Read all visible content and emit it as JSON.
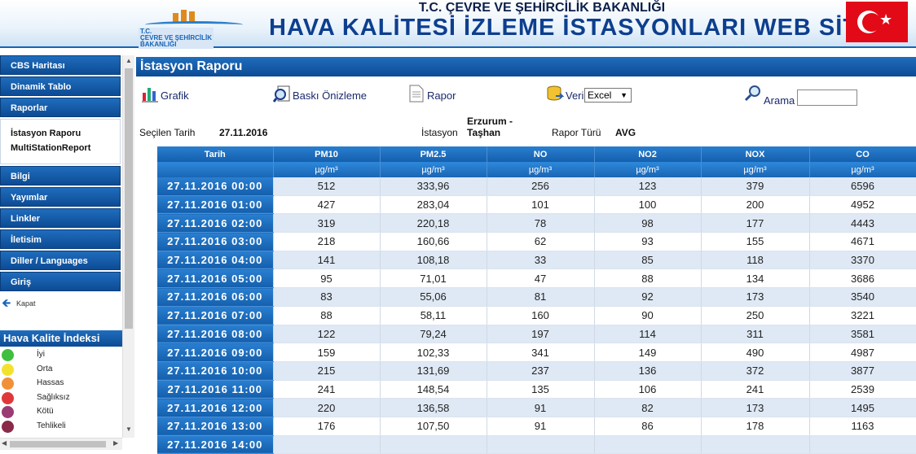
{
  "header": {
    "logo_text": [
      "T.C.",
      "ÇEVRE VE ŞEHİRCİLİK",
      "BAKANLIĞI"
    ],
    "ministry": "T.C. ÇEVRE VE ŞEHİRCİLİK BAKANLIĞI",
    "site_title": "HAVA KALİTESİ İZLEME İSTASYONLARI WEB SİTESİ"
  },
  "sidebar": {
    "menu_top": [
      "CBS Haritası",
      "Dinamik Tablo",
      "Raporlar"
    ],
    "submenu": [
      "İstasyon Raporu",
      "MultiStationReport"
    ],
    "menu_bottom": [
      "Bilgi",
      "Yayımlar",
      "Linkler",
      "İletisim",
      "Diller / Languages",
      "Giriş"
    ],
    "close_label": "Kapat",
    "aqi_title": "Hava Kalite İndeksi",
    "aqi_levels": [
      {
        "label": "İyi",
        "color": "#3fbf3f"
      },
      {
        "label": "Orta",
        "color": "#f2e22e"
      },
      {
        "label": "Hassas",
        "color": "#f0913a"
      },
      {
        "label": "Sağlıksız",
        "color": "#e0383a"
      },
      {
        "label": "Kötü",
        "color": "#9b3b73"
      },
      {
        "label": "Tehlikeli",
        "color": "#8a2a48"
      }
    ]
  },
  "report": {
    "title": "İstasyon Raporu",
    "toolbar": {
      "chart": "Grafik",
      "print_preview": "Baskı Önizleme",
      "report": "Rapor",
      "data": "Veri",
      "format_selected": "Excel",
      "search": "Arama"
    },
    "info": {
      "date_label": "Seçilen Tarih",
      "date_value": "27.11.2016",
      "station_label": "İstasyon",
      "station_value_line1": "Erzurum -",
      "station_value_line2": "Taşhan",
      "type_label": "Rapor Türü",
      "type_value": "AVG"
    }
  },
  "table": {
    "columns": [
      "Tarih",
      "PM10",
      "PM2.5",
      "NO",
      "NO2",
      "NOX",
      "CO"
    ],
    "units": [
      "",
      "µg/m³",
      "µg/m³",
      "µg/m³",
      "µg/m³",
      "µg/m³",
      "µg/m³"
    ],
    "rows": [
      [
        "27.11.2016 00:00",
        "512",
        "333,96",
        "256",
        "123",
        "379",
        "6596"
      ],
      [
        "27.11.2016 01:00",
        "427",
        "283,04",
        "101",
        "100",
        "200",
        "4952"
      ],
      [
        "27.11.2016 02:00",
        "319",
        "220,18",
        "78",
        "98",
        "177",
        "4443"
      ],
      [
        "27.11.2016 03:00",
        "218",
        "160,66",
        "62",
        "93",
        "155",
        "4671"
      ],
      [
        "27.11.2016 04:00",
        "141",
        "108,18",
        "33",
        "85",
        "118",
        "3370"
      ],
      [
        "27.11.2016 05:00",
        "95",
        "71,01",
        "47",
        "88",
        "134",
        "3686"
      ],
      [
        "27.11.2016 06:00",
        "83",
        "55,06",
        "81",
        "92",
        "173",
        "3540"
      ],
      [
        "27.11.2016 07:00",
        "88",
        "58,11",
        "160",
        "90",
        "250",
        "3221"
      ],
      [
        "27.11.2016 08:00",
        "122",
        "79,24",
        "197",
        "114",
        "311",
        "3581"
      ],
      [
        "27.11.2016 09:00",
        "159",
        "102,33",
        "341",
        "149",
        "490",
        "4987"
      ],
      [
        "27.11.2016 10:00",
        "215",
        "131,69",
        "237",
        "136",
        "372",
        "3877"
      ],
      [
        "27.11.2016 11:00",
        "241",
        "148,54",
        "135",
        "106",
        "241",
        "2539"
      ],
      [
        "27.11.2016 12:00",
        "220",
        "136,58",
        "91",
        "82",
        "173",
        "1495"
      ],
      [
        "27.11.2016 13:00",
        "176",
        "107,50",
        "91",
        "86",
        "178",
        "1163"
      ],
      [
        "27.11.2016 14:00",
        "",
        "",
        "",
        "",
        "",
        ""
      ]
    ]
  }
}
